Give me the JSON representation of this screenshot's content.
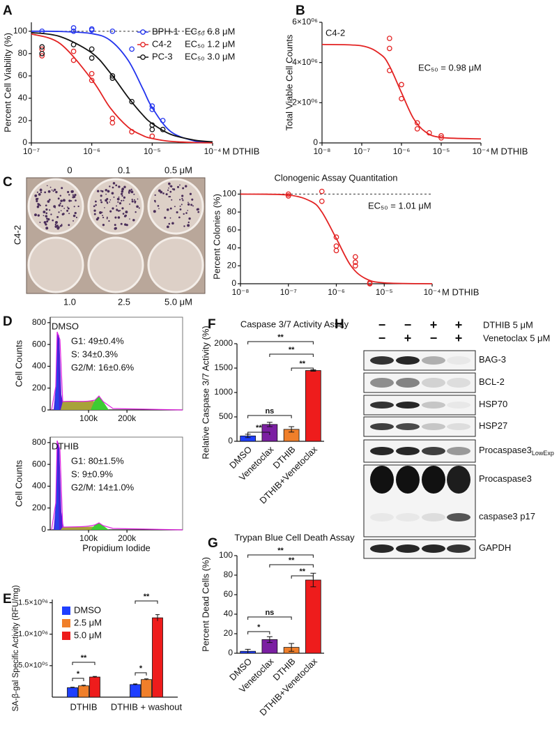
{
  "panel_labels": [
    "A",
    "B",
    "C",
    "D",
    "E",
    "F",
    "G",
    "H"
  ],
  "chart_data": [
    {
      "type": "dose-response",
      "ylabel": "Percent Cell Viability (%)",
      "xlabel": "M DTHIB",
      "log_x": true,
      "xlim": [
        1e-07,
        0.0001
      ],
      "xticks": [
        {
          "value": 1e-07,
          "label": "10⁻⁷"
        },
        {
          "value": 1e-06,
          "label": "10⁻⁶"
        },
        {
          "value": 1e-05,
          "label": "10⁻⁵"
        },
        {
          "value": 0.0001,
          "label": "10⁻⁴"
        }
      ],
      "ylim": [
        0,
        108
      ],
      "yticks": [
        0,
        20,
        40,
        60,
        80,
        100
      ],
      "reference_line": 100,
      "legend": "upper right",
      "series": [
        {
          "name": "BPH-1",
          "note": "EC₅₀  6.8 μM",
          "color": "#2233ee",
          "x": [
            1.5e-07,
            5e-07,
            5e-07,
            1e-06,
            1e-06,
            2.2e-06,
            4.6e-06,
            1e-05,
            1e-05,
            1.5e-05
          ],
          "values": [
            100,
            103,
            100,
            102,
            101,
            100,
            84,
            33,
            30,
            20
          ],
          "fit": {
            "x": [
              1e-07,
              3e-07,
              1e-06,
              2e-06,
              4e-06,
              7e-06,
              1e-05,
              2e-05,
              5e-05,
              0.0001
            ],
            "values": [
              100,
              99.8,
              97.9,
              92,
              74,
              48.5,
              31.6,
              10.4,
              1.8,
              0.5
            ]
          }
        },
        {
          "name": "C4-2",
          "note": "EC₅₀  1.2 μM",
          "color": "#e32222",
          "x": [
            1.5e-07,
            1.5e-07,
            5e-07,
            5e-07,
            1e-06,
            1e-06,
            2.2e-06,
            2.2e-06,
            4.6e-06,
            1e-05
          ],
          "values": [
            84,
            78,
            82,
            74,
            62,
            56,
            22,
            18,
            10,
            6
          ],
          "fit": {
            "x": [
              1e-07,
              3e-07,
              1e-06,
              2e-06,
              4e-06,
              7e-06,
              1e-05,
              2e-05,
              5e-05,
              0.0001
            ],
            "values": [
              97.6,
              88.9,
              56.8,
              31.7,
              14.1,
              6.6,
              4,
              1.4,
              0.4,
              0.1
            ]
          }
        },
        {
          "name": "PC-3",
          "note": "EC₅₀  3.0 μM",
          "color": "#111111",
          "x": [
            1.5e-07,
            1.5e-07,
            5e-07,
            1e-06,
            1e-06,
            2.2e-06,
            2.2e-06,
            4.6e-06,
            1e-05,
            1e-05,
            1.5e-05
          ],
          "values": [
            86,
            80,
            88,
            84,
            76,
            60,
            58,
            37,
            16,
            12,
            12
          ],
          "fit": {
            "x": [
              1e-07,
              3e-07,
              1e-06,
              2e-06,
              4e-06,
              7e-06,
              1e-05,
              2e-05,
              5e-05,
              0.0001
            ],
            "values": [
              98.8,
              95.2,
              80.6,
              63,
              40.8,
              25,
              17.3,
              7.8,
              2.5,
              1.0
            ]
          }
        }
      ]
    },
    {
      "type": "dose-response",
      "title": "C4-2",
      "annotation": "EC₅₀ = 0.98 μM",
      "ylabel": "Total Viable Cell Counts",
      "xlabel": "M DTHIB",
      "log_x": true,
      "xlim": [
        1e-08,
        0.0001
      ],
      "xticks": [
        {
          "value": 1e-08,
          "label": "10⁻⁸"
        },
        {
          "value": 1e-07,
          "label": "10⁻⁷"
        },
        {
          "value": 1e-06,
          "label": "10⁻⁶"
        },
        {
          "value": 1e-05,
          "label": "10⁻⁵"
        },
        {
          "value": 0.0001,
          "label": "10⁻⁴"
        }
      ],
      "ylim": [
        0,
        6000000
      ],
      "yticks": [
        0,
        {
          "value": 2000000,
          "label": "2×10⁰⁶"
        },
        {
          "value": 4000000,
          "label": "4×10⁰⁶"
        },
        {
          "value": 6000000,
          "label": "6×10⁰⁶"
        }
      ],
      "series": [
        {
          "color": "#e32222",
          "x": [
            5e-07,
            5e-07,
            5e-07,
            1e-06,
            1e-06,
            2.5e-06,
            2.5e-06,
            5e-06,
            1e-05,
            1e-05
          ],
          "values": [
            5200000,
            4700000,
            3600000,
            2900000,
            2200000,
            1000000,
            700000,
            500000,
            350000,
            250000
          ],
          "fit": {
            "x": [
              1e-08,
              1e-07,
              3e-07,
              5e-07,
              1e-06,
              2e-06,
              4e-06,
              1e-05,
              0.0001
            ],
            "values": [
              4900000,
              4830000,
              4400000,
              3820000,
              2500000,
              1220000,
              550000,
              270000,
              200000
            ]
          }
        }
      ]
    },
    {
      "type": "dose-response",
      "title": "Clonogenic Assay Quantitation",
      "annotation": "EC₅₀ = 1.01 μM",
      "ylabel": "Percent Colonies (%)",
      "xlabel": "M DTHIB",
      "log_x": true,
      "xlim": [
        1e-08,
        0.0001
      ],
      "xticks": [
        {
          "value": 1e-08,
          "label": "10⁻⁸"
        },
        {
          "value": 1e-07,
          "label": "10⁻⁷"
        },
        {
          "value": 1e-06,
          "label": "10⁻⁶"
        },
        {
          "value": 1e-05,
          "label": "10⁻⁵"
        },
        {
          "value": 0.0001,
          "label": "10⁻⁴"
        }
      ],
      "ylim": [
        0,
        105
      ],
      "yticks": [
        0,
        20,
        40,
        60,
        80,
        100
      ],
      "reference_line": 100,
      "series": [
        {
          "color": "#e32222",
          "x": [
            1e-07,
            1e-07,
            5e-07,
            5e-07,
            1e-06,
            1e-06,
            1e-06,
            2.5e-06,
            2.5e-06,
            2.5e-06,
            5e-06,
            5e-06
          ],
          "values": [
            100,
            98,
            103,
            92,
            52,
            42,
            37,
            30,
            24,
            20,
            1,
            0
          ],
          "fit": {
            "x": [
              1e-08,
              1e-07,
              3e-07,
              5e-07,
              1e-06,
              2e-06,
              4e-06,
              1e-05,
              0.0001
            ],
            "values": [
              100,
              99,
              91.7,
              80,
              50.5,
              20.3,
              6,
              1,
              0
            ]
          }
        }
      ]
    },
    {
      "type": "flow-histogram",
      "label": "DMSO",
      "phases": [
        "G1: 49±0.4%",
        "S: 34±0.3%",
        "G2/M: 16±0.6%"
      ],
      "ylabel": "Cell Counts",
      "xlim": [
        0,
        345000
      ],
      "ylim": [
        0,
        850
      ],
      "yticks": [
        0,
        200,
        400,
        600,
        800
      ],
      "xticks": [
        {
          "value": 100000,
          "label": "100k"
        },
        {
          "value": 200000,
          "label": "200k"
        }
      ]
    },
    {
      "type": "flow-histogram",
      "label": "DTHIB",
      "phases": [
        "G1: 80±1.5%",
        "S: 9±0.9%",
        "G2/M: 14±1.0%"
      ],
      "ylabel": "Cell Counts",
      "xlabel": "Propidium Iodide",
      "xlim": [
        0,
        345000
      ],
      "ylim": [
        0,
        850
      ],
      "yticks": [
        0,
        200,
        400,
        600,
        800
      ],
      "xticks": [
        {
          "value": 100000,
          "label": "100k"
        },
        {
          "value": 200000,
          "label": "200k"
        }
      ]
    },
    {
      "type": "grouped-bar",
      "ylabel": "SA-β-gal Specific Activity (RFU/mg)",
      "categories": [
        "DTHIB",
        "DTHIB + washout"
      ],
      "legend": "upper left",
      "ylim": [
        0,
        1550000
      ],
      "yticks": [
        {
          "value": 500000,
          "label": "5.0×10⁰⁵"
        },
        {
          "value": 1000000,
          "label": "1.0×10⁰⁶"
        },
        {
          "value": 1500000,
          "label": "1.5×10⁰⁶"
        }
      ],
      "series": [
        {
          "name": "DMSO",
          "color": "#1f3fff",
          "values": [
            150000,
            200000
          ],
          "errors": [
            8000,
            10000
          ]
        },
        {
          "name": "2.5 μM",
          "color": "#f07f2a",
          "values": [
            180000,
            280000
          ],
          "errors": [
            10000,
            10000
          ]
        },
        {
          "name": "5.0 μM",
          "color": "#ee1c1c",
          "values": [
            320000,
            1260000
          ],
          "errors": [
            10000,
            50000
          ]
        }
      ],
      "significance": [
        "*",
        "**",
        "*",
        "**"
      ]
    },
    {
      "type": "bar",
      "title": "Caspase 3/7 Activity Assay",
      "ylabel": "Relative Caspase 3/7 Activity (%)",
      "categories": [
        "DMSO",
        "Venetoclax",
        "DTHIB",
        "DTHIB+Venetoclax"
      ],
      "values": [
        110,
        345,
        245,
        1450
      ],
      "errors": [
        35,
        45,
        55,
        15
      ],
      "colors": [
        "#1f3fff",
        "#7b1fa2",
        "#f07f2a",
        "#ee1c1c"
      ],
      "ylim": [
        0,
        2000
      ],
      "yticks": [
        0,
        500,
        1000,
        1500,
        2000
      ],
      "significance": [
        "**",
        "**",
        "**",
        "ns",
        "**"
      ]
    },
    {
      "type": "bar",
      "title": "Trypan Blue Cell Death Assay",
      "ylabel": "Percent Dead Cells (%)",
      "categories": [
        "DMSO",
        "Venetoclax",
        "DTHIB",
        "DTHIB+Venetoclax"
      ],
      "values": [
        2,
        14,
        6,
        75
      ],
      "errors": [
        2,
        3,
        4,
        7
      ],
      "colors": [
        "#1f3fff",
        "#7b1fa2",
        "#f07f2a",
        "#ee1c1c"
      ],
      "ylim": [
        0,
        100
      ],
      "yticks": [
        0,
        20,
        40,
        60,
        80,
        100
      ],
      "significance": [
        "**",
        "**",
        "**",
        "ns",
        "*"
      ]
    }
  ],
  "plate": {
    "cell_line": "C4-2",
    "top_labels": [
      "0",
      "0.1",
      "0.5 μM"
    ],
    "bottom_labels": [
      "1.0",
      "2.5",
      "5.0 μM"
    ]
  },
  "blot": {
    "treatments": [
      {
        "name": "DTHIB  5 μM",
        "signs": [
          "−",
          "−",
          "+",
          "+"
        ]
      },
      {
        "name": "Venetoclax  5 μM",
        "signs": [
          "−",
          "+",
          "−",
          "+"
        ]
      }
    ],
    "bands": [
      {
        "label": "BAG-3"
      },
      {
        "label": "BCL-2"
      },
      {
        "label": "HSP70"
      },
      {
        "label": "HSP27"
      },
      {
        "label": "Procaspase3",
        "sub": "LowExp"
      },
      {
        "label": "Procaspase3"
      },
      {
        "label": "caspase3 p17"
      },
      {
        "label": "GAPDH"
      }
    ]
  }
}
